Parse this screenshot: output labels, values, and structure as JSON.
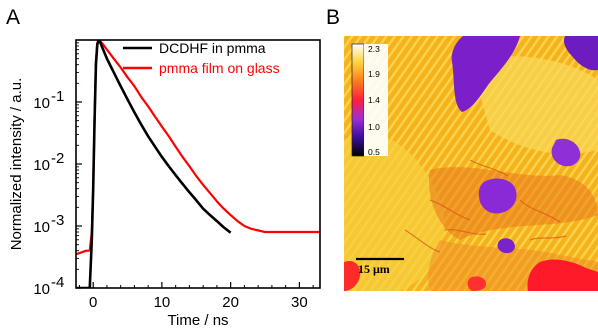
{
  "panel_a_label": "A",
  "panel_b_label": "B",
  "chart_data": {
    "type": "line",
    "xlabel": "Time / ns",
    "ylabel": "Normalized intensity / a.u.",
    "xlim": [
      -2.5,
      33
    ],
    "ylim": [
      0.0001,
      1
    ],
    "yscale": "log",
    "x_ticks": [
      0,
      10,
      20,
      30
    ],
    "y_ticks": [
      0.0001,
      0.001,
      0.01,
      0.1
    ],
    "y_tick_labels": [
      {
        "base": "10",
        "exp": "-4"
      },
      {
        "base": "10",
        "exp": "-3"
      },
      {
        "base": "10",
        "exp": "-2"
      },
      {
        "base": "10",
        "exp": "-1"
      }
    ],
    "legend_position": "top-right",
    "series": [
      {
        "name": "DCDHF in pmma",
        "color": "#000000",
        "x": [
          -2.5,
          -1,
          -0.5,
          -0.2,
          0,
          0.2,
          0.4,
          0.6,
          0.8,
          1,
          1.5,
          2,
          3,
          4,
          5,
          6,
          7,
          8,
          9,
          10,
          11,
          12,
          13,
          14,
          15,
          16,
          17,
          18,
          19,
          20
        ],
        "y": [
          0.0001,
          0.0001,
          0.0001,
          0.0006,
          0.004,
          0.05,
          0.4,
          0.85,
          1.0,
          0.93,
          0.68,
          0.5,
          0.3,
          0.18,
          0.11,
          0.068,
          0.043,
          0.028,
          0.019,
          0.013,
          0.0092,
          0.0066,
          0.0048,
          0.0035,
          0.0026,
          0.0019,
          0.0015,
          0.0012,
          0.00095,
          0.00078
        ]
      },
      {
        "name": "pmma film on glass",
        "color": "#ff0000",
        "x": [
          -2.5,
          -1,
          -0.5,
          -0.2,
          0,
          0.2,
          0.4,
          0.6,
          0.8,
          1,
          1.5,
          2,
          3,
          4,
          5,
          6,
          7,
          8,
          9,
          10,
          11,
          12,
          13,
          14,
          15,
          16,
          17,
          18,
          19,
          20,
          21,
          22,
          23,
          24,
          25,
          26,
          27,
          28,
          29,
          30,
          31,
          32,
          33
        ],
        "y": [
          0.00035,
          0.0004,
          0.0004,
          0.0008,
          0.004,
          0.05,
          0.45,
          0.9,
          1.0,
          0.97,
          0.83,
          0.7,
          0.5,
          0.36,
          0.25,
          0.18,
          0.12,
          0.085,
          0.058,
          0.04,
          0.028,
          0.019,
          0.013,
          0.0092,
          0.0064,
          0.0046,
          0.0034,
          0.0025,
          0.0019,
          0.0015,
          0.0012,
          0.001,
          0.0009,
          0.00085,
          0.0008,
          0.0008,
          0.0008,
          0.0008,
          0.0008,
          0.0008,
          0.0008,
          0.0008,
          0.0008
        ]
      }
    ]
  },
  "image_panel": {
    "colorbar_labels": [
      "2.3",
      "1.9",
      "1.4",
      "1.0",
      "0.5"
    ],
    "colorbar_colors": [
      "#000000",
      "#3a0f9e",
      "#9e2fd3",
      "#ff1e3c",
      "#ff7b1e",
      "#ffd23c",
      "#ffffff"
    ],
    "scale_bar_label": "15 μm"
  }
}
